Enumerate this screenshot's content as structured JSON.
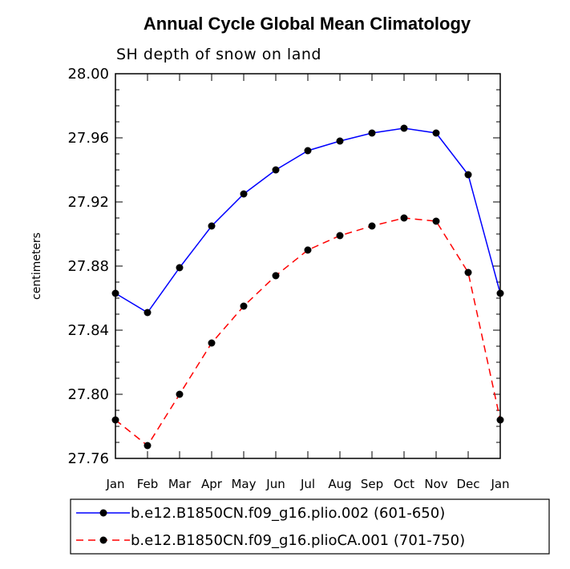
{
  "chart_data": {
    "type": "line",
    "title": "Annual Cycle Global Mean Climatology",
    "subtitle": "SH depth of snow on land",
    "xlabel": "",
    "ylabel": "centimeters",
    "categories": [
      "Jan",
      "Feb",
      "Mar",
      "Apr",
      "May",
      "Jun",
      "Jul",
      "Aug",
      "Sep",
      "Oct",
      "Nov",
      "Dec",
      "Jan"
    ],
    "ylim": [
      27.76,
      28.0
    ],
    "yticks": [
      "27.76",
      "27.80",
      "27.84",
      "27.88",
      "27.92",
      "27.96",
      "28.00"
    ],
    "legend_position": "bottom",
    "series": [
      {
        "name": "b.e12.B1850CN.f09_g16.plio.002 (601-650)",
        "color": "#0000ff",
        "dash": "solid",
        "values": [
          27.863,
          27.851,
          27.879,
          27.905,
          27.925,
          27.94,
          27.952,
          27.958,
          27.963,
          27.966,
          27.963,
          27.937,
          27.863
        ]
      },
      {
        "name": "b.e12.B1850CN.f09_g16.plioCA.001 (701-750)",
        "color": "#ff0000",
        "dash": "dashed",
        "values": [
          27.784,
          27.768,
          27.8,
          27.832,
          27.855,
          27.874,
          27.89,
          27.899,
          27.905,
          27.91,
          27.908,
          27.876,
          27.784
        ]
      }
    ]
  }
}
